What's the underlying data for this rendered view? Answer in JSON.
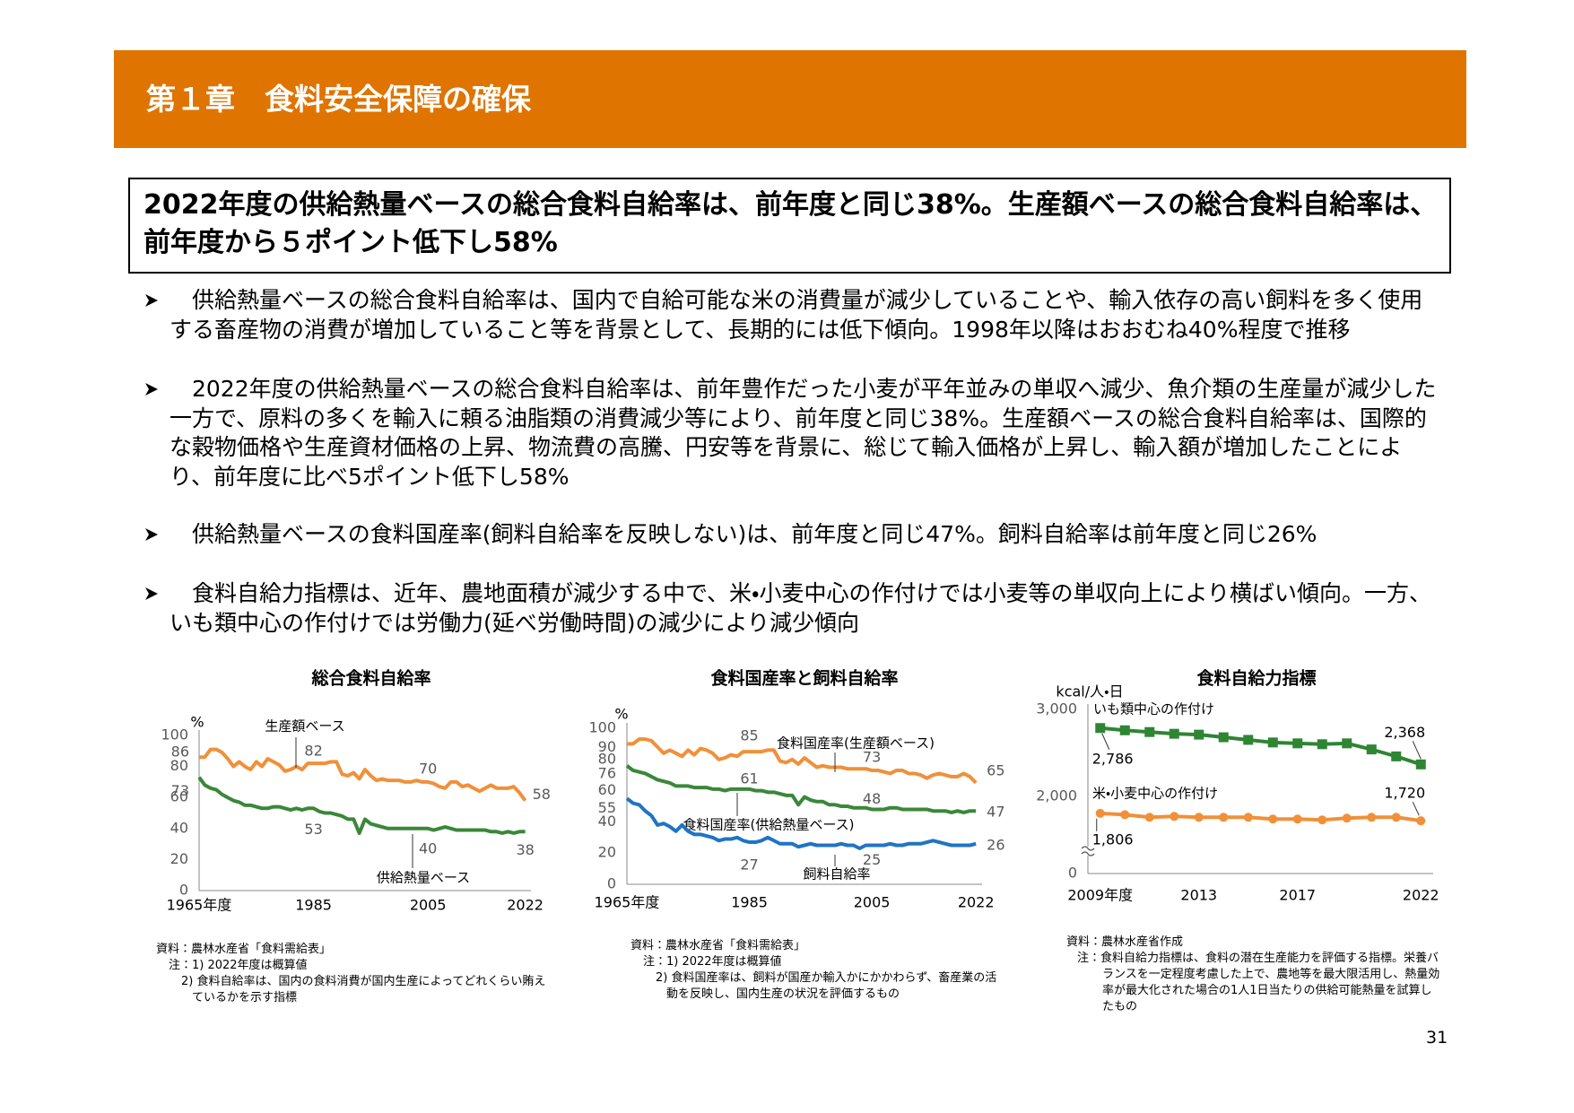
{
  "header": {
    "title": "第１章　食料安全保障の確保"
  },
  "headline": "2022年度の供給熱量ベースの総合食料自給率は、前年度と同じ38%。生産額ベースの総合食料自給率は、前年度から５ポイント低下し58%",
  "bullets": [
    "供給熱量ベースの総合食料自給率は、国内で自給可能な米の消費量が減少していることや、輸入依存の高い飼料を多く使用する畜産物の消費が増加していること等を背景として、長期的には低下傾向。1998年以降はおおむね40%程度で推移",
    "2022年度の供給熱量ベースの総合食料自給率は、前年豊作だった小麦が平年並みの単収へ減少、魚介類の生産量が減少した一方で、原料の多くを輸入に頼る油脂類の消費減少等により、前年度と同じ38%。生産額ベースの総合食料自給率は、国際的な穀物価格や生産資材価格の上昇、物流費の高騰、円安等を背景に、総じて輸入価格が上昇し、輸入額が増加したことにより、前年度に比べ5ポイント低下し58%",
    "供給熱量ベースの食料国産率(飼料自給率を反映しない)は、前年度と同じ47%。飼料自給率は前年度と同じ26%",
    "食料自給力指標は、近年、農地面積が減少する中で、米・小麦中心の作付けでは小麦等の単収向上により横ばい傾向。一方、いも類中心の作付けでは労働力(延べ労働時間)の減少により減少傾向"
  ],
  "chart_data": [
    {
      "type": "line",
      "title": "総合食料自給率",
      "y_label": "%",
      "x": [
        1965,
        1966,
        1967,
        1968,
        1969,
        1970,
        1971,
        1972,
        1973,
        1974,
        1975,
        1976,
        1977,
        1978,
        1979,
        1980,
        1981,
        1982,
        1983,
        1984,
        1985,
        1986,
        1987,
        1988,
        1989,
        1990,
        1991,
        1992,
        1993,
        1994,
        1995,
        1996,
        1997,
        1998,
        1999,
        2000,
        2001,
        2002,
        2003,
        2004,
        2005,
        2006,
        2007,
        2008,
        2009,
        2010,
        2011,
        2012,
        2013,
        2014,
        2015,
        2016,
        2017,
        2018,
        2019,
        2020,
        2021,
        2022
      ],
      "series": [
        {
          "name": "生産額ベース",
          "color": "#f0903a",
          "values": [
            86,
            86,
            91,
            91,
            89,
            85,
            80,
            83,
            80,
            78,
            83,
            80,
            85,
            83,
            81,
            77,
            78,
            80,
            78,
            82,
            82,
            82,
            82,
            83,
            83,
            75,
            74,
            76,
            72,
            78,
            74,
            71,
            72,
            71,
            71,
            71,
            70,
            70,
            71,
            70,
            70,
            69,
            67,
            66,
            70,
            70,
            67,
            68,
            66,
            64,
            66,
            68,
            66,
            66,
            66,
            67,
            63,
            58
          ]
        },
        {
          "name": "供給熱量ベース",
          "color": "#3a873a",
          "values": [
            73,
            68,
            66,
            65,
            62,
            60,
            58,
            57,
            55,
            55,
            54,
            53,
            53,
            54,
            54,
            53,
            52,
            53,
            52,
            53,
            53,
            51,
            50,
            50,
            49,
            48,
            46,
            46,
            37,
            46,
            43,
            42,
            41,
            40,
            40,
            40,
            40,
            40,
            40,
            40,
            40,
            39,
            40,
            41,
            40,
            39,
            39,
            39,
            39,
            39,
            39,
            38,
            38,
            37,
            38,
            37,
            38,
            38
          ]
        }
      ],
      "xlim": [
        1965,
        2023
      ],
      "xticks": [
        {
          "value": 1965,
          "label": "1965年度"
        },
        1985,
        2005,
        2022
      ],
      "ylim": [
        0,
        100
      ],
      "yticks": [
        0,
        20,
        40,
        60,
        80,
        100
      ],
      "grid": false,
      "source": "資料：農林水産省「食料需給表」",
      "notes": [
        "注：1) 2022年度は概算値",
        "2) 食料自給率は、国内の食料消費が国内生産によってどれくらい賄えているかを示す指標"
      ]
    },
    {
      "type": "line",
      "title": "食料国産率と飼料自給率",
      "y_label": "%",
      "x": [
        1965,
        1966,
        1967,
        1968,
        1969,
        1970,
        1971,
        1972,
        1973,
        1974,
        1975,
        1976,
        1977,
        1978,
        1979,
        1980,
        1981,
        1982,
        1983,
        1984,
        1985,
        1986,
        1987,
        1988,
        1989,
        1990,
        1991,
        1992,
        1993,
        1994,
        1995,
        1996,
        1997,
        1998,
        1999,
        2000,
        2001,
        2002,
        2003,
        2004,
        2005,
        2006,
        2007,
        2008,
        2009,
        2010,
        2011,
        2012,
        2013,
        2014,
        2015,
        2016,
        2017,
        2018,
        2019,
        2020,
        2021,
        2022
      ],
      "series": [
        {
          "name": "食料国産率(生産額ベース)",
          "color": "#f0903a",
          "values": [
            90,
            90,
            93,
            93,
            92,
            88,
            84,
            86,
            84,
            82,
            86,
            83,
            87,
            86,
            84,
            80,
            81,
            83,
            82,
            85,
            85,
            85,
            85,
            86,
            86,
            79,
            78,
            80,
            77,
            81,
            78,
            75,
            76,
            75,
            75,
            75,
            74,
            74,
            74,
            74,
            73,
            73,
            72,
            71,
            73,
            73,
            71,
            71,
            70,
            68,
            70,
            71,
            70,
            69,
            69,
            71,
            69,
            65
          ]
        },
        {
          "name": "食料国産率(供給熱量ベース)",
          "color": "#3a873a",
          "values": [
            76,
            73,
            72,
            71,
            69,
            67,
            66,
            65,
            63,
            63,
            63,
            62,
            62,
            62,
            61,
            61,
            60,
            61,
            61,
            61,
            61,
            60,
            60,
            59,
            59,
            58,
            57,
            57,
            51,
            56,
            54,
            53,
            53,
            51,
            51,
            50,
            50,
            49,
            49,
            49,
            48,
            48,
            48,
            49,
            49,
            48,
            48,
            48,
            48,
            48,
            47,
            47,
            47,
            46,
            47,
            46,
            47,
            47
          ]
        },
        {
          "name": "飼料自給率",
          "color": "#1f74c4",
          "values": [
            55,
            52,
            51,
            47,
            44,
            38,
            39,
            37,
            34,
            38,
            34,
            32,
            32,
            31,
            30,
            28,
            29,
            29,
            30,
            28,
            27,
            27,
            28,
            30,
            28,
            26,
            26,
            26,
            24,
            25,
            26,
            25,
            25,
            25,
            25,
            26,
            25,
            25,
            23,
            25,
            25,
            25,
            25,
            26,
            25,
            25,
            26,
            26,
            26,
            27,
            28,
            27,
            26,
            25,
            25,
            25,
            25,
            26
          ]
        }
      ],
      "xlim": [
        1965,
        2023
      ],
      "xticks": [
        {
          "value": 1965,
          "label": "1965年度"
        },
        1985,
        2005,
        2022
      ],
      "ylim": [
        0,
        100
      ],
      "yticks": [
        0,
        20,
        40,
        60,
        80,
        100
      ],
      "grid": false,
      "source": "資料：農林水産省「食料需給表」",
      "notes": [
        "注：1) 2022年度は概算値",
        "2) 食料国産率は、飼料が国産か輸入かにかかわらず、畜産業の活動を反映し、国内生産の状況を評価するもの"
      ]
    },
    {
      "type": "line",
      "title": "食料自給力指標",
      "y_label": "kcal/人・日",
      "x": [
        2009,
        2010,
        2011,
        2012,
        2013,
        2014,
        2015,
        2016,
        2017,
        2018,
        2019,
        2020,
        2021,
        2022
      ],
      "series": [
        {
          "name": "いも類中心の作付け",
          "color": "#2e8532",
          "marker": "square",
          "values": [
            2786,
            2760,
            2740,
            2720,
            2710,
            2680,
            2650,
            2620,
            2610,
            2600,
            2610,
            2540,
            2460,
            2368
          ],
          "value_labels": [
            "2,786",
            null,
            null,
            null,
            null,
            null,
            null,
            null,
            null,
            null,
            null,
            null,
            null,
            "2,368"
          ]
        },
        {
          "name": "米・小麦中心の作付け",
          "color": "#f0903a",
          "marker": "circle",
          "values": [
            1806,
            1790,
            1760,
            1770,
            1760,
            1760,
            1760,
            1740,
            1740,
            1730,
            1750,
            1760,
            1760,
            1720
          ],
          "value_labels": [
            "1,806",
            null,
            null,
            null,
            null,
            null,
            null,
            null,
            null,
            null,
            null,
            null,
            null,
            "1,720"
          ]
        }
      ],
      "xlim": [
        2008.5,
        2022.5
      ],
      "xticks": [
        {
          "value": 2009,
          "label": "2009年度"
        },
        2013,
        2017,
        2022
      ],
      "ylim": [
        0,
        3000
      ],
      "yticks": [
        0,
        {
          "value": 2000,
          "label": "2,000"
        },
        {
          "value": 3000,
          "label": "3,000"
        }
      ],
      "axis_break": true,
      "grid": false,
      "source": "資料：農林水産省作成",
      "notes": [
        "注：食料自給力指標は、食料の潜在生産能力を評価する指標。栄養バランスを一定程度考慮した上で、農地等を最大限活用し、熱量効率が最大化された場合の1人1日当たりの供給可能熱量を試算したもの"
      ]
    }
  ],
  "page_number": 31
}
